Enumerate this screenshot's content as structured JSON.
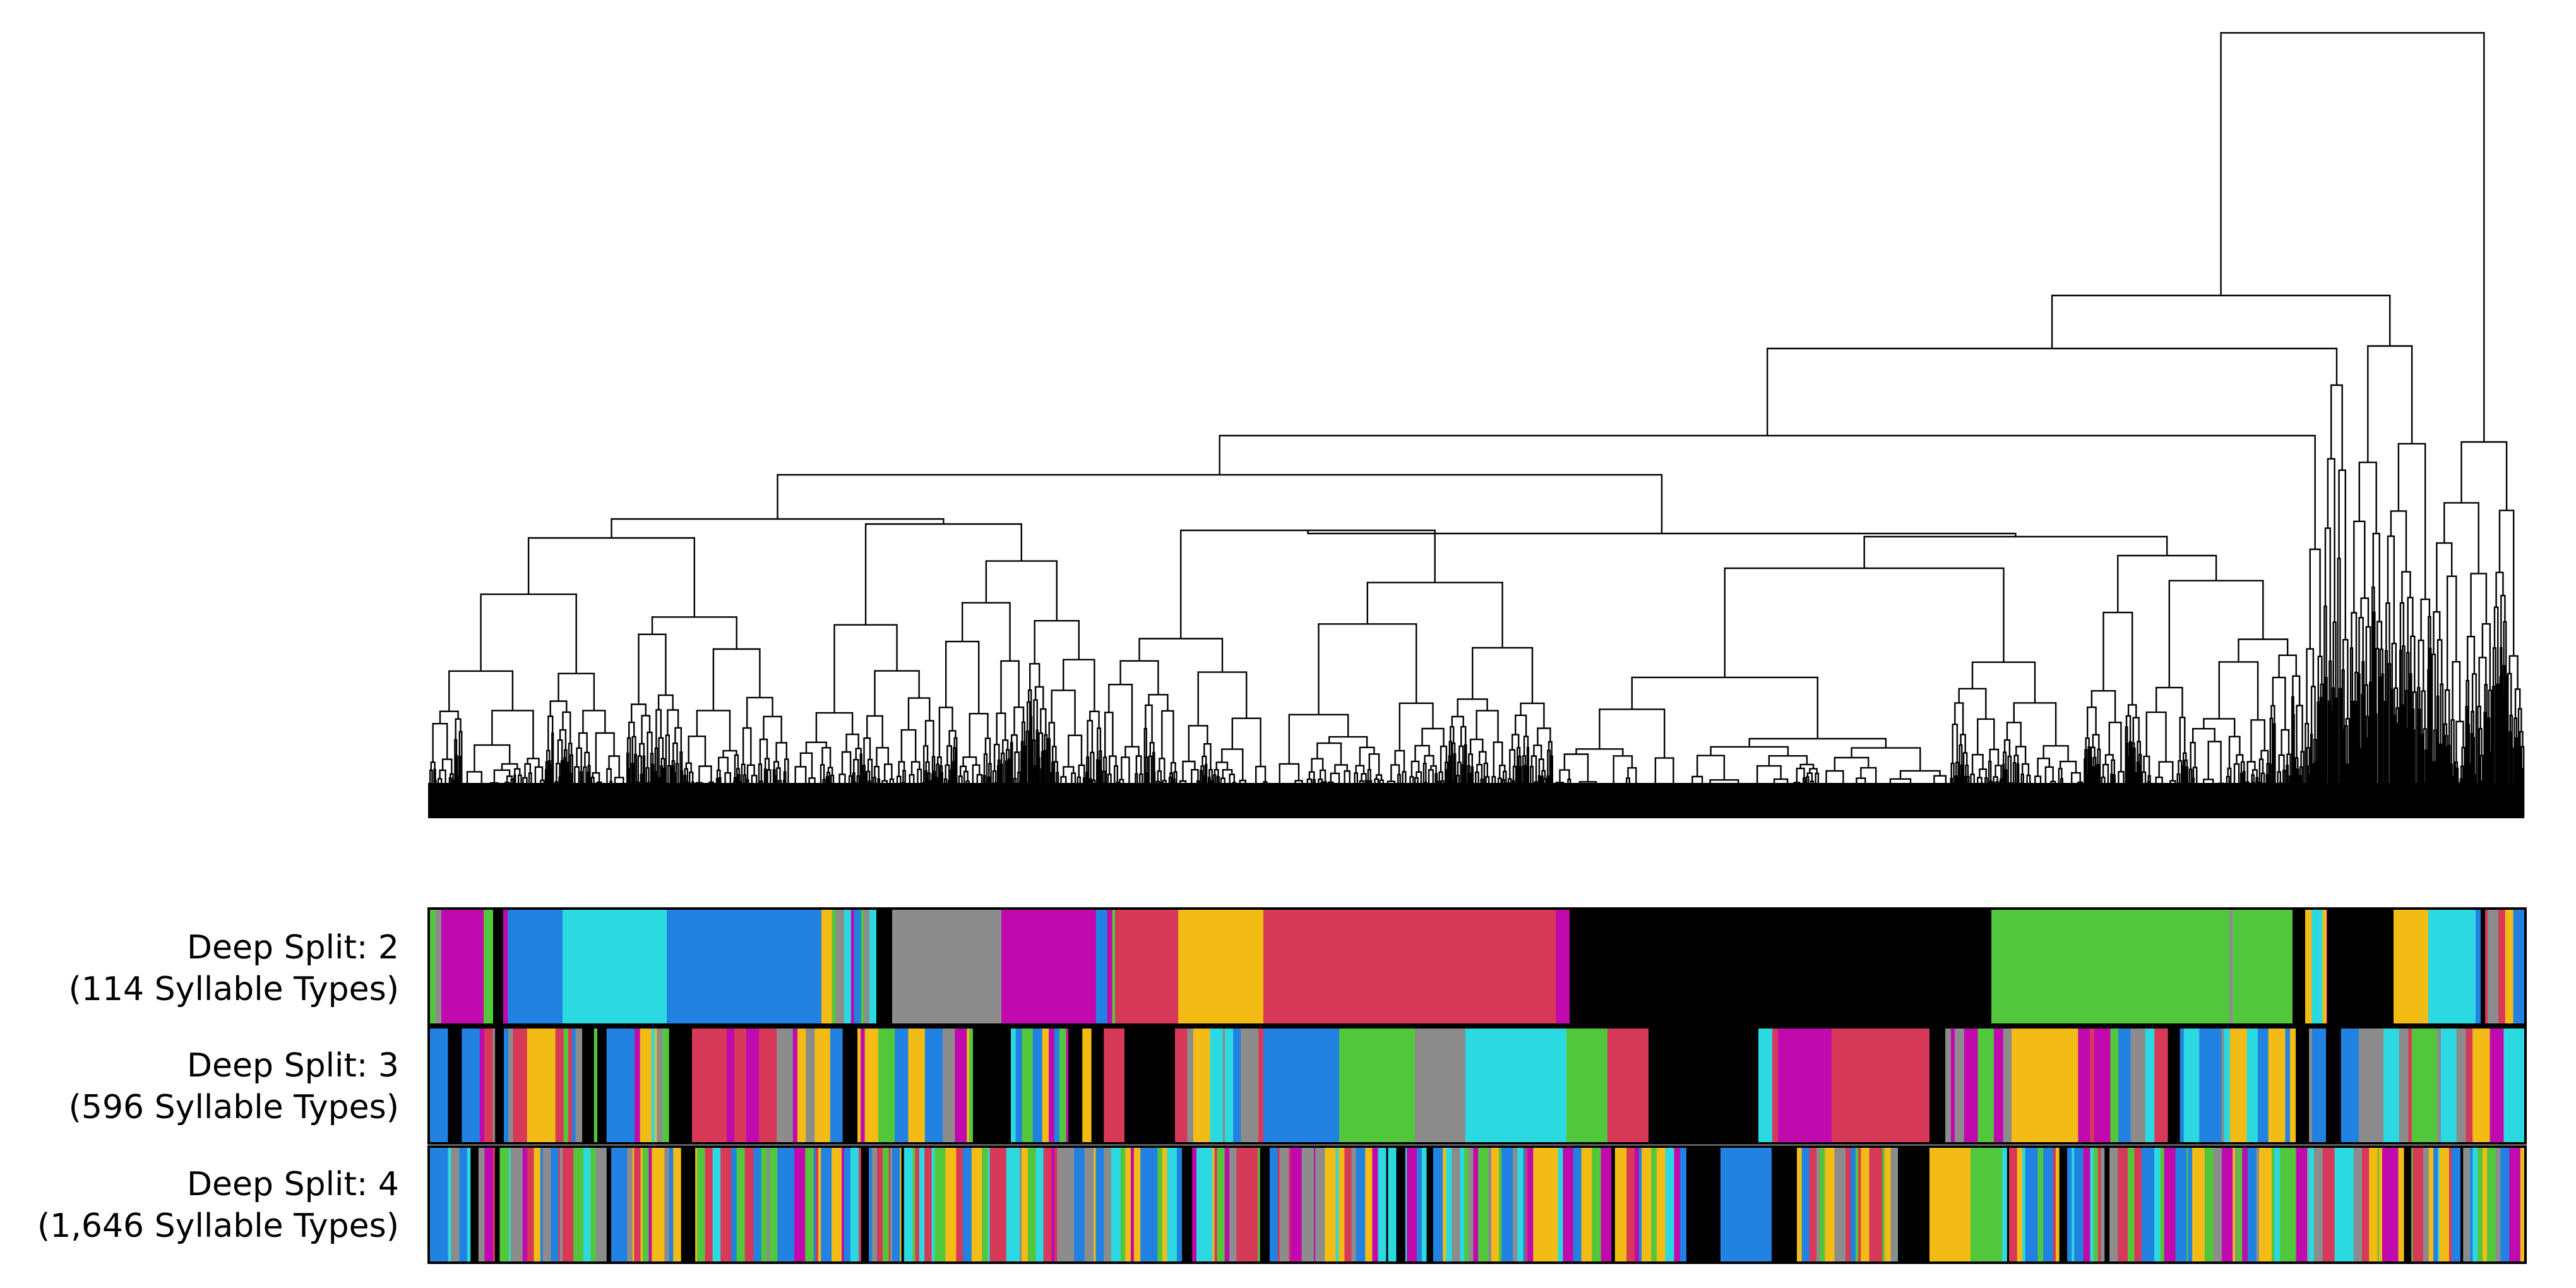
{
  "rows": [
    {
      "line1": "Deep Split: 2",
      "line2": "(114 Syllable Types)"
    },
    {
      "line1": "Deep Split: 3",
      "line2": "(596 Syllable Types)"
    },
    {
      "line1": "Deep Split: 4",
      "line2": "(1,646 Syllable Types)"
    }
  ],
  "palette": {
    "magenta": "#c10aae",
    "blue": "#2282e1",
    "cyan": "#2dd9e0",
    "gray": "#8c8c8c",
    "red": "#d63a58",
    "yellow": "#f2bb15",
    "green": "#52c73c",
    "black": "#000000",
    "line": "#000000"
  }
}
